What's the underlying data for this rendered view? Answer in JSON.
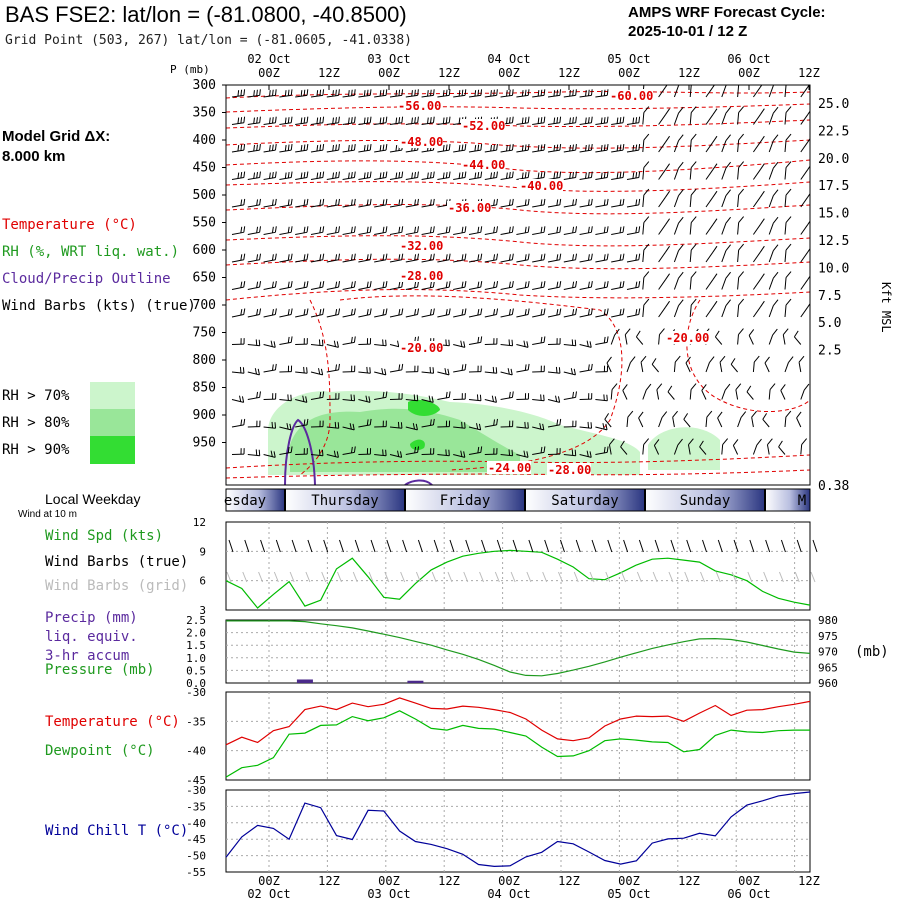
{
  "header": {
    "title": "BAS FSE2:  lat/lon = (-81.0800, -40.8500)",
    "subtitle": "Grid Point (503, 267) lat/lon = (-81.0605, -41.0338)",
    "cycle_line1": "AMPS WRF Forecast Cycle:",
    "cycle_line2": "2025-10-01 / 12  Z"
  },
  "model_grid": {
    "line1": "Model Grid ΔX:",
    "line2": " 8.000 km"
  },
  "legend": {
    "temperature": "Temperature (°C)",
    "rh": "RH (%, WRT liq. wat.)",
    "cloud": "Cloud/Precip Outline",
    "wind_barbs": "Wind Barbs (kts) (true)",
    "rh70": "RH > 70%",
    "rh80": "RH > 80%",
    "rh90": "RH > 90%",
    "local_weekday": "Local Weekday",
    "wind_at": "Wind at 10 m",
    "wind_spd": "Wind Spd (kts)",
    "wind_barbs_true": "Wind Barbs (true)",
    "wind_barbs_grid": "Wind Barbs (grid)",
    "precip1": "Precip (mm)",
    "precip2": "liq. equiv.",
    "precip3": "3-hr accum",
    "pressure": "Pressure (mb)",
    "temperature2": "Temperature (°C)",
    "dewpoint": "Dewpoint (°C)",
    "windchill": "Wind Chill T (°C)",
    "pressure_unit": "(mb)"
  },
  "colors": {
    "temp": "#e00000",
    "rh": "#1f9a1f",
    "cloud": "#5b2a9e",
    "rh70": "#ccf5cc",
    "rh80": "#99e699",
    "rh90": "#33dd33",
    "wind": "#00bb00",
    "windchill": "#000099",
    "precip": "#4b2a8a"
  },
  "chart_data": [
    {
      "type": "cross-section",
      "name": "upper",
      "p_label": "P (mb)",
      "right_label": "Kft MSL",
      "pressure_ticks": [
        "300",
        "350",
        "400",
        "450",
        "500",
        "550",
        "600",
        "650",
        "700",
        "750",
        "800",
        "850",
        "900",
        "950"
      ],
      "height_ticks": [
        "25.0",
        "22.5",
        "20.0",
        "17.5",
        "15.0",
        "12.5",
        "10.0",
        "7.5",
        "5.0",
        "2.5",
        "0.38"
      ],
      "time_ticks": [
        "00Z",
        "12Z",
        "00Z",
        "12Z",
        "00Z",
        "12Z",
        "00Z",
        "12Z",
        "00Z",
        "12Z"
      ],
      "date_ticks": [
        "02 Oct",
        "03 Oct",
        "04 Oct",
        "05 Oct",
        "06 Oct"
      ],
      "temp_labels": [
        "-56.00",
        "-52.00",
        "-48.00",
        "-44.00",
        "-40.00",
        "-36.00",
        "-32.00",
        "-28.00",
        "-20.00",
        "-20.00",
        "-24.00",
        "-28.00",
        "-60.00"
      ]
    },
    {
      "type": "band",
      "name": "weekday",
      "days": [
        "esday",
        "Thursday",
        "Friday",
        "Saturday",
        "Sunday",
        "M"
      ]
    },
    {
      "type": "line",
      "name": "wind_speed",
      "yticks": [
        "12",
        "9",
        "6",
        "3"
      ],
      "ylim": [
        3,
        12
      ],
      "values": [
        6.0,
        5.2,
        3.2,
        4.6,
        5.9,
        3.4,
        4.0,
        7.2,
        8.3,
        6.4,
        4.3,
        4.1,
        5.7,
        7.1,
        7.9,
        8.5,
        8.8,
        9.0,
        9.1,
        9.0,
        8.9,
        8.2,
        7.4,
        6.2,
        6.1,
        6.8,
        7.6,
        8.2,
        8.3,
        8.1,
        7.9,
        7.0,
        6.6,
        6.0,
        4.9,
        4.2,
        3.8,
        3.5
      ]
    },
    {
      "type": "line",
      "name": "pressure_precip",
      "yticks_left": [
        "2.5",
        "2.0",
        "1.5",
        "1.0",
        "0.5",
        "0.0"
      ],
      "yticks_right": [
        "980",
        "975",
        "970",
        "965",
        "960"
      ],
      "ylim_left": [
        0,
        2.5
      ],
      "ylim_right": [
        960,
        980
      ],
      "pressure": [
        979.7,
        979.7,
        979.7,
        979.7,
        979.7,
        979.5,
        978.8,
        978.2,
        977.5,
        976.5,
        975.5,
        974.4,
        973.2,
        972.0,
        970.5,
        969.1,
        967.5,
        965.6,
        963.5,
        962.4,
        962.3,
        963.0,
        964.1,
        965.3,
        966.7,
        968.2,
        969.6,
        971.0,
        972.1,
        973.1,
        974.0,
        974.1,
        973.8,
        973.0,
        971.9,
        970.8,
        969.8,
        969.4
      ],
      "precip_bars": [
        {
          "time_index": 5,
          "value": 0.1
        },
        {
          "time_index": 12,
          "value": 0.05
        }
      ]
    },
    {
      "type": "line",
      "name": "temp_dewpoint",
      "yticks": [
        "-30",
        "-35",
        "-40",
        "-45"
      ],
      "ylim": [
        -45,
        -30
      ],
      "temperature": [
        -39.0,
        -37.7,
        -38.6,
        -36.6,
        -35.9,
        -33.0,
        -32.4,
        -33.0,
        -31.9,
        -32.5,
        -32.1,
        -31.0,
        -31.9,
        -32.8,
        -32.9,
        -32.4,
        -32.6,
        -33.0,
        -33.5,
        -34.6,
        -36.5,
        -38.0,
        -38.3,
        -37.8,
        -35.8,
        -34.6,
        -34.1,
        -34.2,
        -34.1,
        -35.0,
        -33.6,
        -32.3,
        -34.0,
        -33.1,
        -33.0,
        -32.5,
        -32.1,
        -31.6
      ],
      "dewpoint": [
        -44.5,
        -42.9,
        -42.5,
        -41.2,
        -37.2,
        -37.0,
        -35.7,
        -35.6,
        -34.2,
        -34.9,
        -34.4,
        -33.2,
        -34.6,
        -36.2,
        -36.5,
        -35.7,
        -36.2,
        -36.3,
        -36.9,
        -37.5,
        -39.4,
        -41.0,
        -40.9,
        -40.0,
        -38.3,
        -38.0,
        -38.2,
        -38.5,
        -38.6,
        -40.2,
        -39.8,
        -37.4,
        -36.5,
        -36.8,
        -36.9,
        -36.6,
        -36.5,
        -36.5
      ]
    },
    {
      "type": "line",
      "name": "windchill",
      "yticks": [
        "-30",
        "-35",
        "-40",
        "-45",
        "-50",
        "-55"
      ],
      "ylim": [
        -55,
        -30
      ],
      "values": [
        -50.5,
        -44.3,
        -40.8,
        -41.7,
        -45.0,
        -34.0,
        -35.4,
        -43.9,
        -45.1,
        -36.2,
        -36.4,
        -42.5,
        -45.7,
        -46.6,
        -47.9,
        -49.6,
        -52.7,
        -53.3,
        -53.1,
        -50.4,
        -49.0,
        -45.7,
        -46.4,
        -48.9,
        -51.5,
        -52.6,
        -51.6,
        -46.2,
        -44.9,
        -44.7,
        -43.2,
        -44.0,
        -38.2,
        -34.6,
        -33.3,
        -31.8,
        -31.1,
        -30.6
      ]
    }
  ]
}
